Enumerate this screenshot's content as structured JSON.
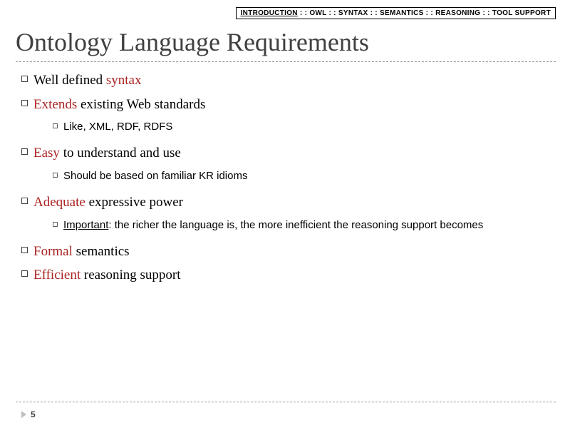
{
  "breadcrumb": {
    "items": [
      "INTRODUCTION",
      "OWL",
      "SYNTAX",
      "SEMANTICS",
      "REASONING",
      "TOOL SUPPORT"
    ],
    "separator": " : : ",
    "active_index": 0,
    "font_size": 10,
    "border_color": "#000000"
  },
  "title": {
    "text": "Ontology Language Requirements",
    "font_size": 36,
    "color": "#404040",
    "underline_color": "#999999"
  },
  "bullets": [
    {
      "plain": "Well defined ",
      "highlight": "syntax"
    },
    {
      "highlight": "Extends",
      "plain_after": " existing Web standards",
      "sub": [
        {
          "text": "Like, XML, RDF, RDFS"
        }
      ]
    },
    {
      "highlight": "Easy",
      "plain_after": " to understand and use",
      "sub": [
        {
          "text": "Should be based on familiar KR idioms"
        }
      ]
    },
    {
      "highlight": "Adequate",
      "plain_after": " expressive power",
      "sub": [
        {
          "uline": "Important",
          "rest": ": the richer the language is, the more inefficient the reasoning support becomes"
        }
      ]
    },
    {
      "highlight": "Formal",
      "plain_after": " semantics"
    },
    {
      "highlight": "Efficient",
      "plain_after": " reasoning support"
    }
  ],
  "colors": {
    "highlight": "#aa2222",
    "text": "#000000",
    "bullet_border": "#404040",
    "sub_bullet_border": "#606060",
    "dash": "#999999",
    "arrow": "#bfbfbf",
    "background": "#ffffff"
  },
  "typography": {
    "title_family": "Georgia",
    "body_family": "Georgia",
    "sub_family": "Arial",
    "bullet_fontsize": 19,
    "sub_fontsize": 15
  },
  "page_number": "5"
}
